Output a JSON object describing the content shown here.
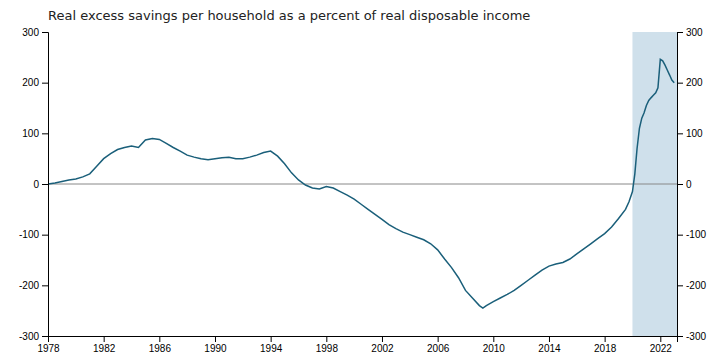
{
  "chart_data": {
    "type": "line",
    "title": "Real excess savings per household as a percent of real disposable income",
    "color": "#1a5f7a",
    "grid": false,
    "xlim": [
      1978,
      2023.2
    ],
    "xticks": [
      1978,
      1982,
      1986,
      1990,
      1994,
      1998,
      2002,
      2006,
      2010,
      2014,
      2018,
      2022
    ],
    "ylim": [
      -300,
      300
    ],
    "yticks": [
      -300,
      -200,
      -100,
      0,
      100,
      200,
      300
    ],
    "y2lim": [
      -300,
      300
    ],
    "y2ticks": [
      -300,
      -200,
      -100,
      0,
      100,
      200,
      300
    ],
    "highlight": [
      2020.0,
      2023.2
    ],
    "x": [
      1978.0,
      1978.5,
      1979.0,
      1979.5,
      1980.0,
      1980.5,
      1981.0,
      1981.5,
      1982.0,
      1982.5,
      1983.0,
      1983.5,
      1984.0,
      1984.5,
      1985.0,
      1985.5,
      1986.0,
      1986.5,
      1987.0,
      1987.5,
      1988.0,
      1988.5,
      1989.0,
      1989.5,
      1990.0,
      1990.5,
      1991.0,
      1991.5,
      1992.0,
      1992.5,
      1993.0,
      1993.5,
      1994.0,
      1994.5,
      1995.0,
      1995.5,
      1996.0,
      1996.5,
      1997.0,
      1997.5,
      1998.0,
      1998.5,
      1999.0,
      1999.5,
      2000.0,
      2000.5,
      2001.0,
      2001.5,
      2002.0,
      2002.5,
      2003.0,
      2003.5,
      2004.0,
      2004.5,
      2005.0,
      2005.5,
      2006.0,
      2006.5,
      2007.0,
      2007.5,
      2008.0,
      2008.5,
      2009.0,
      2009.25,
      2009.5,
      2010.0,
      2010.5,
      2011.0,
      2011.5,
      2012.0,
      2012.5,
      2013.0,
      2013.5,
      2014.0,
      2014.5,
      2015.0,
      2015.5,
      2016.0,
      2016.5,
      2017.0,
      2017.5,
      2018.0,
      2018.5,
      2019.0,
      2019.5,
      2019.75,
      2020.0,
      2020.17,
      2020.33,
      2020.5,
      2020.67,
      2020.83,
      2021.0,
      2021.17,
      2021.33,
      2021.5,
      2021.67,
      2021.83,
      2022.0,
      2022.17,
      2022.33,
      2022.5,
      2022.67,
      2022.83,
      2023.0
    ],
    "values": [
      0.0,
      2.0,
      5.0,
      8.0,
      10.0,
      14.0,
      20.0,
      35.0,
      50.0,
      60.0,
      68.0,
      72.0,
      75.0,
      72.0,
      87.0,
      90.0,
      88.0,
      80.0,
      72.0,
      65.0,
      57.0,
      53.0,
      50.0,
      48.0,
      50.0,
      52.0,
      53.0,
      50.0,
      50.0,
      53.0,
      57.0,
      62.0,
      65.0,
      55.0,
      40.0,
      22.0,
      8.0,
      -2.0,
      -8.0,
      -10.0,
      -5.0,
      -8.0,
      -15.0,
      -22.0,
      -30.0,
      -40.0,
      -50.0,
      -60.0,
      -70.0,
      -80.0,
      -88.0,
      -95.0,
      -100.0,
      -105.0,
      -110.0,
      -118.0,
      -130.0,
      -148.0,
      -165.0,
      -185.0,
      -210.0,
      -225.0,
      -240.0,
      -245.0,
      -240.0,
      -232.0,
      -225.0,
      -218.0,
      -210.0,
      -200.0,
      -190.0,
      -180.0,
      -170.0,
      -162.0,
      -158.0,
      -155.0,
      -148.0,
      -138.0,
      -128.0,
      -118.0,
      -108.0,
      -98.0,
      -85.0,
      -68.0,
      -50.0,
      -35.0,
      -15.0,
      20.0,
      70.0,
      110.0,
      130.0,
      140.0,
      155.0,
      165.0,
      170.0,
      175.0,
      180.0,
      190.0,
      246.0,
      243.0,
      235.0,
      225.0,
      215.0,
      205.0,
      200.0
    ]
  }
}
